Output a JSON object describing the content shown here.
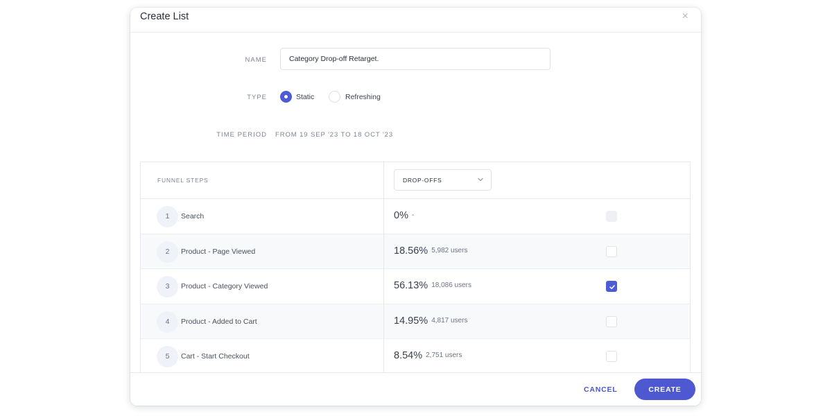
{
  "modal": {
    "title": "Create List"
  },
  "form": {
    "name_label": "NAME",
    "name_value": "Category Drop-off Retarget.",
    "type_label": "TYPE",
    "type_options": [
      {
        "label": "Static",
        "selected": true
      },
      {
        "label": "Refreshing",
        "selected": false
      }
    ],
    "period_label": "TIME PERIOD",
    "period_value": "FROM 19 SEP '23 TO 18 OCT '23"
  },
  "table": {
    "steps_header": "FUNNEL STEPS",
    "metric_selected": "DROP-OFFS",
    "rows": [
      {
        "num": "1",
        "name": "Search",
        "pct": "0%",
        "users": "-",
        "checked": false,
        "disabled": true
      },
      {
        "num": "2",
        "name": "Product - Page Viewed",
        "pct": "18.56%",
        "users": "5,982 users",
        "checked": false,
        "disabled": false
      },
      {
        "num": "3",
        "name": "Product - Category Viewed",
        "pct": "56.13%",
        "users": "18,086 users",
        "checked": true,
        "disabled": false
      },
      {
        "num": "4",
        "name": "Product - Added to Cart",
        "pct": "14.95%",
        "users": "4,817 users",
        "checked": false,
        "disabled": false
      },
      {
        "num": "5",
        "name": "Cart - Start Checkout",
        "pct": "8.54%",
        "users": "2,751 users",
        "checked": false,
        "disabled": false
      }
    ]
  },
  "footer": {
    "cancel_label": "CANCEL",
    "create_label": "CREATE"
  },
  "colors": {
    "accent": "#4e5ad6"
  }
}
